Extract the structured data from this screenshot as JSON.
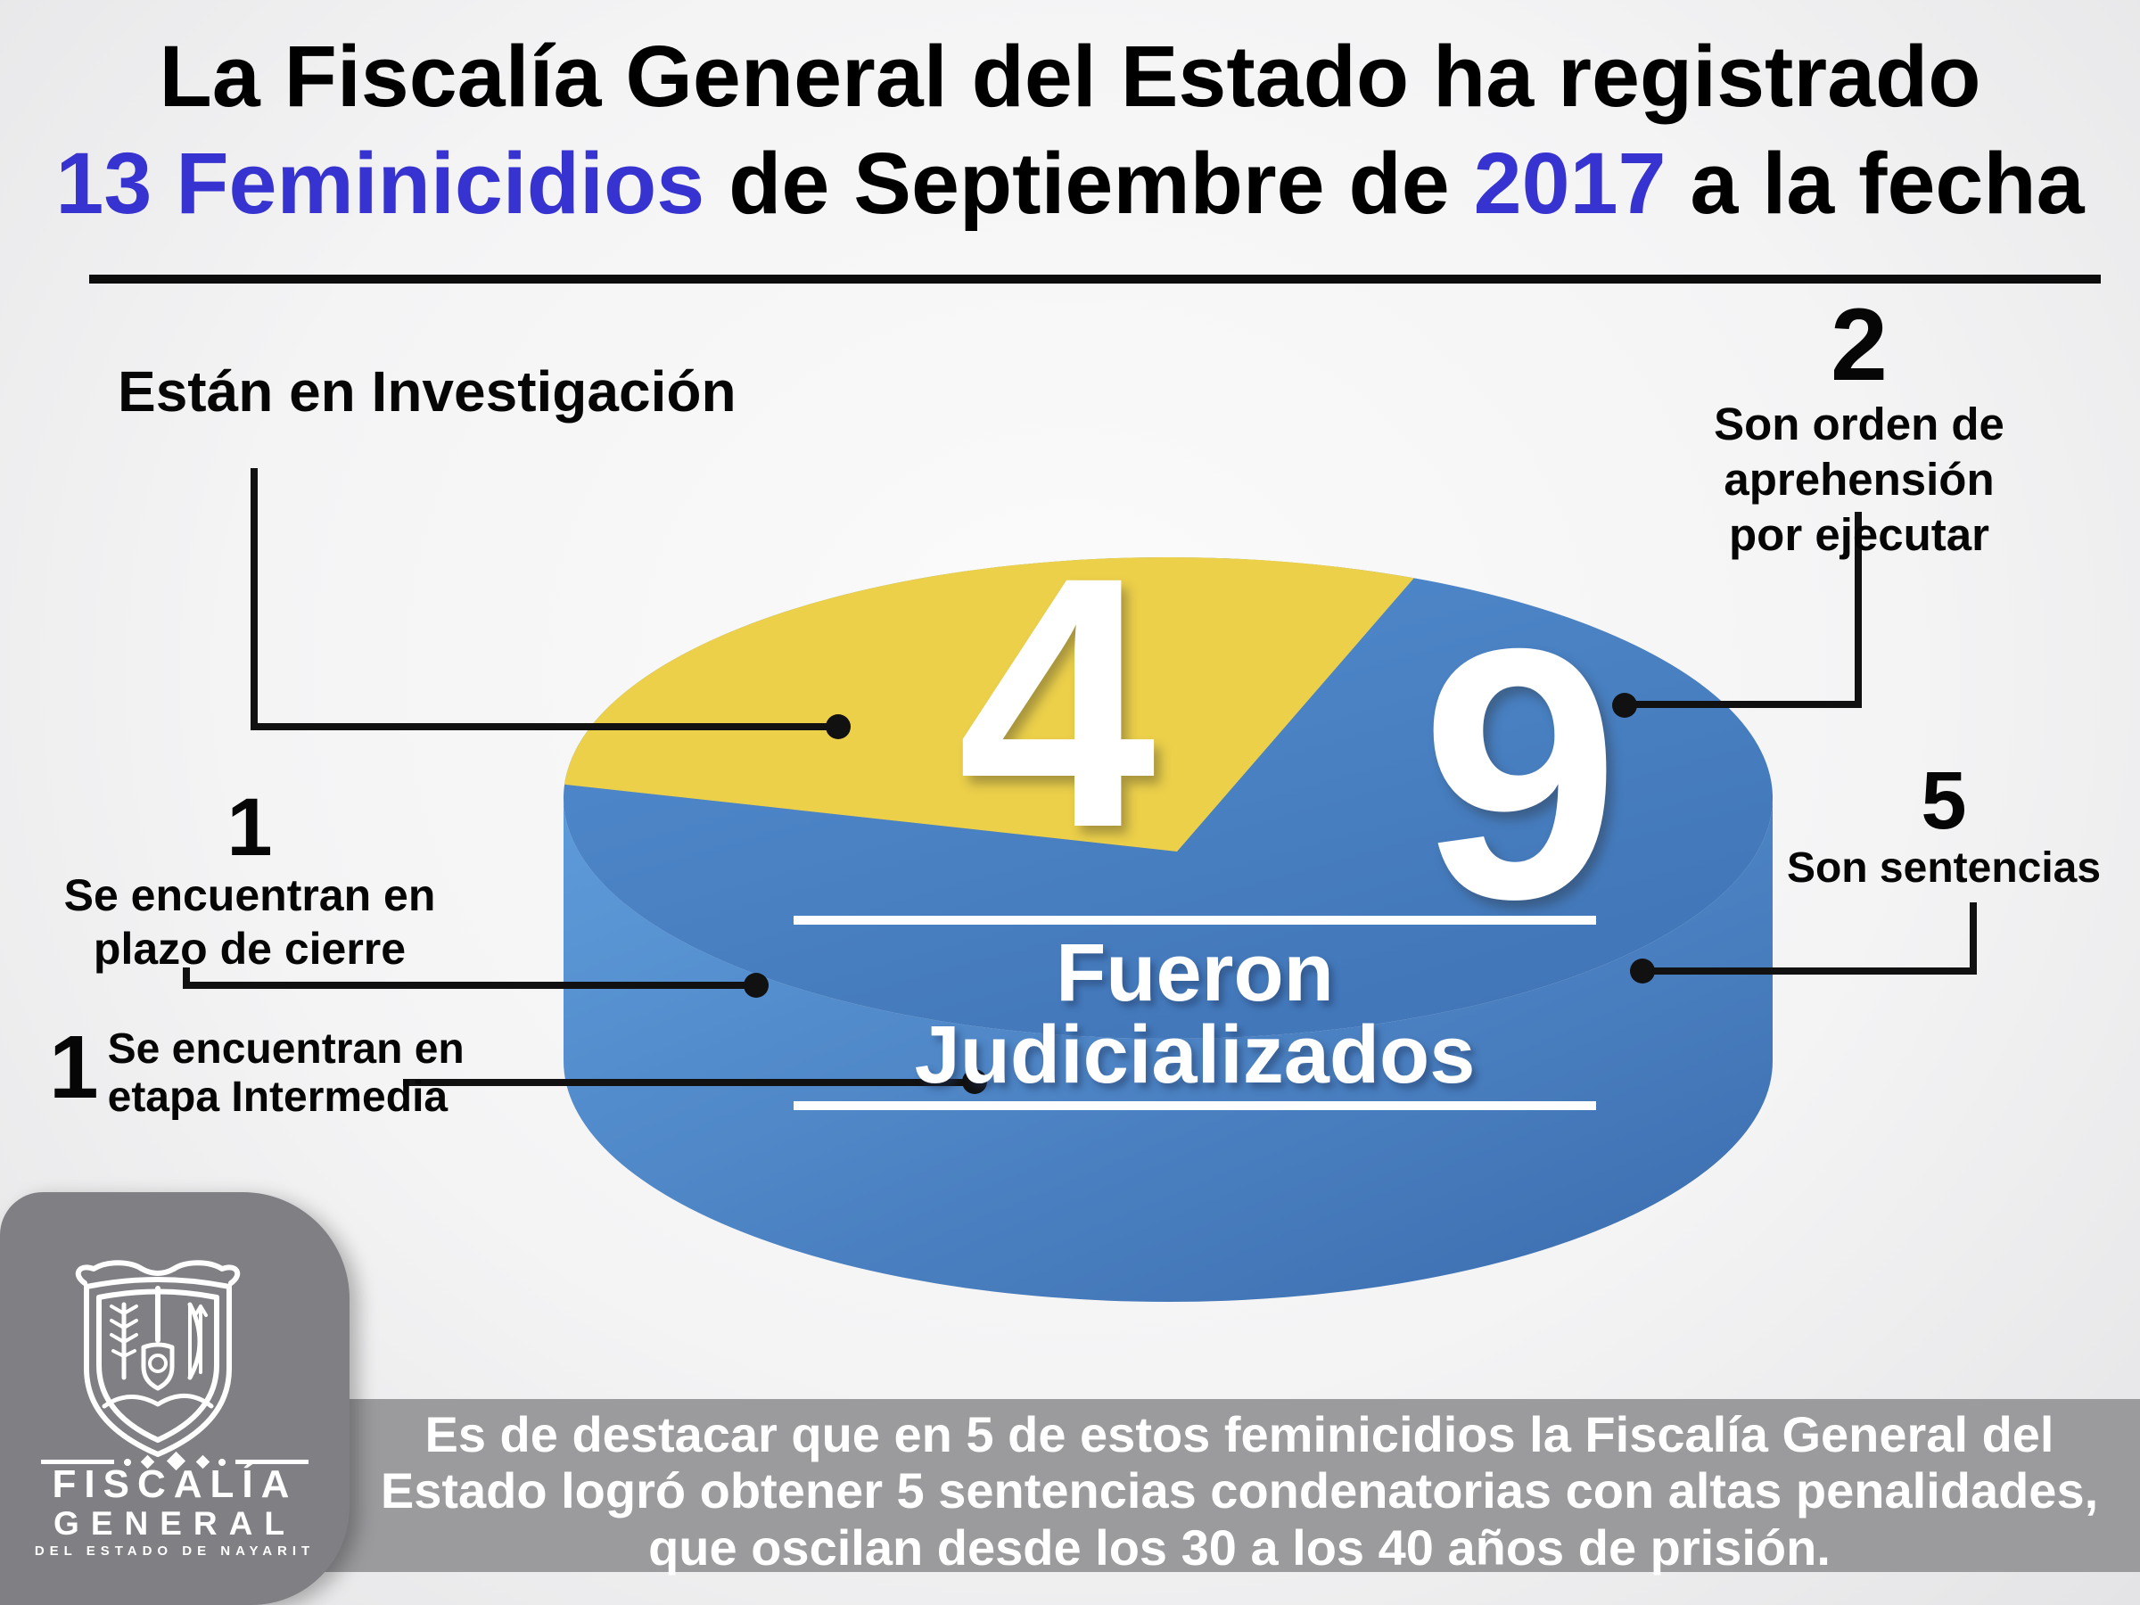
{
  "page": {
    "title_line1": "La Fiscalía General del Estado ha registrado",
    "title_line2_count": "13 Feminicidios",
    "title_line2_mid": " de Septiembre de ",
    "title_line2_year": "2017",
    "title_line2_end": " a la fecha"
  },
  "annotations": {
    "investigacion": {
      "label": "Están en Investigación",
      "value": 4
    },
    "aprehension": {
      "value": 2,
      "line1": "Son orden de aprehensión",
      "line2": "por ejecutar"
    },
    "plazo": {
      "value": 1,
      "line1": "Se encuentran en",
      "line2": "plazo de cierre"
    },
    "etapa": {
      "value": 1,
      "line1": "Se encuentran en",
      "line2": "etapa Intermedia"
    },
    "sentencias": {
      "value": 5,
      "label": "Son sentencias"
    }
  },
  "chart_data": {
    "type": "pie",
    "categories": [
      "Están en Investigación",
      "Fueron Judicializados"
    ],
    "values": [
      4,
      9
    ],
    "total": 13,
    "total_label": "13 Feminicidios",
    "slice_value_labels": [
      "4",
      "9"
    ],
    "center_label": "Fueron Judicializados",
    "colors": [
      "#ecd04a",
      "#4a85c6"
    ],
    "colors_render": {
      "yellow": "#ecd04a",
      "top_light": "#538ed0",
      "top_dark": "#4176b8",
      "side_light": "#5e9bda",
      "side_dark": "#3b6cae"
    },
    "start_angle_deg": 66,
    "legend_position": "callouts",
    "judicializados_breakdown": {
      "orden_de_aprehension_por_ejecutar": 2,
      "plazo_de_cierre": 1,
      "etapa_intermedia": 1,
      "sentencias": 5
    }
  },
  "footer": {
    "line1": "Es de destacar que en 5 de estos feminicidios la Fiscalía General del",
    "line2": "Estado logró obtener 5 sentencias condenatorias con altas penalidades,",
    "line3": "que oscilan desde los 30 a los 40 años de prisión."
  },
  "logo": {
    "org_line1": "FISCALÍA",
    "org_line2": "GENERAL",
    "org_line3": "DEL ESTADO DE NAYARIT"
  },
  "theme": {
    "accent_blue_text": "#3733d0",
    "bar_gray": "#9b9b9e",
    "logo_gray": "#7f7f84",
    "leader_black": "#111111",
    "background": "#f4f4f5"
  }
}
